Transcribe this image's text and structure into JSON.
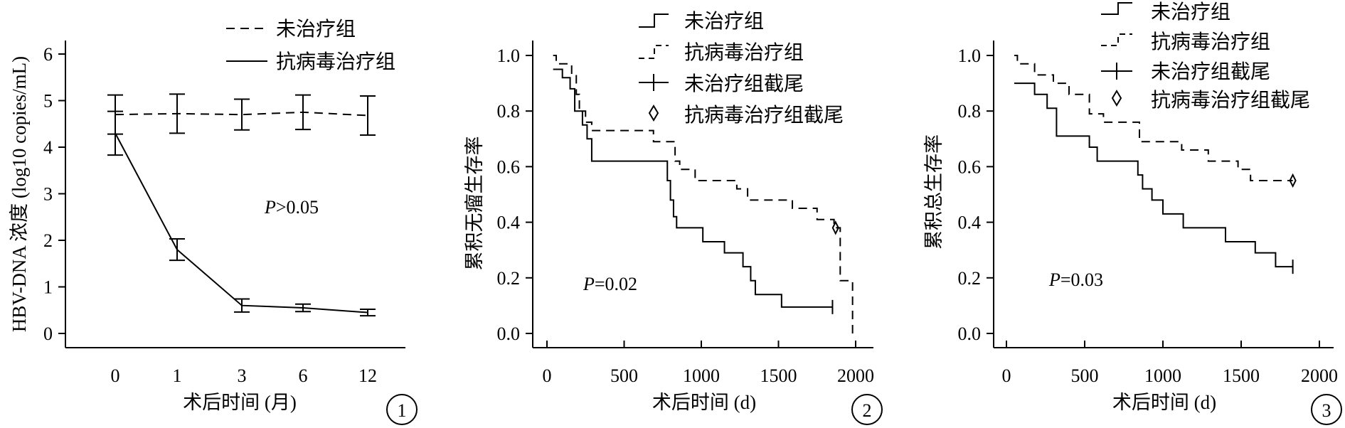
{
  "chart_data": [
    {
      "type": "line",
      "panel_number": "1",
      "xlabel": "术后时间 (月)",
      "ylabel": "HBV-DNA 浓度 (log10 copies/mL)",
      "categories": [
        "0",
        "1",
        "3",
        "6",
        "12"
      ],
      "ylim": [
        0,
        6
      ],
      "yticks": [
        "0",
        "1",
        "2",
        "3",
        "4",
        "5",
        "6"
      ],
      "annotation": {
        "italic": "P",
        "rest": ">0.05"
      },
      "legend_position": "top-right",
      "series": [
        {
          "name": "未治疗组",
          "style": "dashed",
          "values": [
            4.7,
            4.72,
            4.7,
            4.75,
            4.68
          ],
          "errors": [
            0.42,
            0.42,
            0.33,
            0.37,
            0.42
          ]
        },
        {
          "name": "抗病毒治疗组",
          "style": "solid",
          "values": [
            4.3,
            1.8,
            0.6,
            0.55,
            0.45
          ],
          "errors": [
            0.47,
            0.23,
            0.14,
            0.08,
            0.07
          ]
        }
      ]
    },
    {
      "type": "line",
      "panel_number": "2",
      "xlabel": "术后时间 (d)",
      "ylabel": "累积无瘤生存率",
      "xlim": [
        0,
        2000
      ],
      "xticks": [
        "0",
        "500",
        "1000",
        "1500",
        "2000"
      ],
      "ylim": [
        0,
        1
      ],
      "yticks": [
        "0.0",
        "0.2",
        "0.4",
        "0.6",
        "0.8",
        "1.0"
      ],
      "annotation": {
        "italic": "P",
        "rest": "=0.02"
      },
      "legend_position": "top-right",
      "legend": [
        "未治疗组",
        "抗病毒治疗组",
        "未治疗组截尾",
        "抗病毒治疗组截尾"
      ],
      "series": [
        {
          "name": "未治疗组",
          "style": "solid",
          "points": [
            [
              40,
              0.95
            ],
            [
              100,
              0.95
            ],
            [
              100,
              0.92
            ],
            [
              150,
              0.92
            ],
            [
              150,
              0.88
            ],
            [
              180,
              0.88
            ],
            [
              180,
              0.8
            ],
            [
              230,
              0.8
            ],
            [
              230,
              0.75
            ],
            [
              260,
              0.75
            ],
            [
              260,
              0.7
            ],
            [
              290,
              0.7
            ],
            [
              290,
              0.62
            ],
            [
              780,
              0.62
            ],
            [
              780,
              0.55
            ],
            [
              800,
              0.55
            ],
            [
              800,
              0.48
            ],
            [
              820,
              0.48
            ],
            [
              820,
              0.42
            ],
            [
              840,
              0.42
            ],
            [
              840,
              0.38
            ],
            [
              1010,
              0.38
            ],
            [
              1010,
              0.33
            ],
            [
              1150,
              0.33
            ],
            [
              1150,
              0.29
            ],
            [
              1270,
              0.29
            ],
            [
              1270,
              0.24
            ],
            [
              1320,
              0.24
            ],
            [
              1320,
              0.19
            ],
            [
              1350,
              0.19
            ],
            [
              1350,
              0.14
            ],
            [
              1520,
              0.14
            ],
            [
              1520,
              0.095
            ],
            [
              1850,
              0.095
            ]
          ],
          "censor": [
            [
              1850,
              0.095
            ]
          ]
        },
        {
          "name": "抗病毒治疗组",
          "style": "dashed",
          "points": [
            [
              40,
              1.0
            ],
            [
              60,
              1.0
            ],
            [
              60,
              0.97
            ],
            [
              160,
              0.97
            ],
            [
              160,
              0.93
            ],
            [
              190,
              0.93
            ],
            [
              190,
              0.86
            ],
            [
              210,
              0.86
            ],
            [
              210,
              0.8
            ],
            [
              250,
              0.8
            ],
            [
              250,
              0.76
            ],
            [
              290,
              0.76
            ],
            [
              290,
              0.73
            ],
            [
              690,
              0.73
            ],
            [
              690,
              0.69
            ],
            [
              830,
              0.69
            ],
            [
              830,
              0.62
            ],
            [
              860,
              0.62
            ],
            [
              860,
              0.59
            ],
            [
              960,
              0.59
            ],
            [
              960,
              0.55
            ],
            [
              1230,
              0.55
            ],
            [
              1230,
              0.52
            ],
            [
              1300,
              0.52
            ],
            [
              1300,
              0.48
            ],
            [
              1590,
              0.48
            ],
            [
              1590,
              0.45
            ],
            [
              1750,
              0.45
            ],
            [
              1750,
              0.41
            ],
            [
              1860,
              0.41
            ],
            [
              1860,
              0.38
            ],
            [
              1900,
              0.38
            ],
            [
              1900,
              0.19
            ],
            [
              1980,
              0.19
            ],
            [
              1980,
              0.0
            ]
          ],
          "censor": [
            [
              1870,
              0.38
            ]
          ]
        }
      ]
    },
    {
      "type": "line",
      "panel_number": "3",
      "xlabel": "术后时间 (d)",
      "ylabel": "累积总生存率",
      "xlim": [
        0,
        2000
      ],
      "xticks": [
        "0",
        "500",
        "1000",
        "1500",
        "2000"
      ],
      "ylim": [
        0,
        1
      ],
      "yticks": [
        "0.0",
        "0.2",
        "0.4",
        "0.6",
        "0.8",
        "1.0"
      ],
      "annotation": {
        "italic": "P",
        "rest": "=0.03"
      },
      "legend_position": "top-right",
      "legend": [
        "未治疗组",
        "抗病毒治疗组",
        "未治疗组截尾",
        "抗病毒治疗组截尾"
      ],
      "series": [
        {
          "name": "未治疗组",
          "style": "solid",
          "points": [
            [
              50,
              0.9
            ],
            [
              180,
              0.9
            ],
            [
              180,
              0.86
            ],
            [
              260,
              0.86
            ],
            [
              260,
              0.81
            ],
            [
              320,
              0.81
            ],
            [
              320,
              0.71
            ],
            [
              530,
              0.71
            ],
            [
              530,
              0.67
            ],
            [
              580,
              0.67
            ],
            [
              580,
              0.62
            ],
            [
              840,
              0.62
            ],
            [
              840,
              0.57
            ],
            [
              870,
              0.57
            ],
            [
              870,
              0.52
            ],
            [
              930,
              0.52
            ],
            [
              930,
              0.48
            ],
            [
              1000,
              0.48
            ],
            [
              1000,
              0.43
            ],
            [
              1130,
              0.43
            ],
            [
              1130,
              0.38
            ],
            [
              1400,
              0.38
            ],
            [
              1400,
              0.33
            ],
            [
              1590,
              0.33
            ],
            [
              1590,
              0.29
            ],
            [
              1720,
              0.29
            ],
            [
              1720,
              0.24
            ],
            [
              1830,
              0.24
            ]
          ],
          "censor": [
            [
              1830,
              0.24
            ]
          ]
        },
        {
          "name": "抗病毒治疗组",
          "style": "dashed",
          "points": [
            [
              50,
              1.0
            ],
            [
              70,
              1.0
            ],
            [
              70,
              0.97
            ],
            [
              180,
              0.97
            ],
            [
              180,
              0.93
            ],
            [
              300,
              0.93
            ],
            [
              300,
              0.9
            ],
            [
              400,
              0.9
            ],
            [
              400,
              0.86
            ],
            [
              530,
              0.86
            ],
            [
              530,
              0.79
            ],
            [
              620,
              0.79
            ],
            [
              620,
              0.76
            ],
            [
              850,
              0.76
            ],
            [
              850,
              0.69
            ],
            [
              1120,
              0.69
            ],
            [
              1120,
              0.66
            ],
            [
              1290,
              0.66
            ],
            [
              1290,
              0.62
            ],
            [
              1480,
              0.62
            ],
            [
              1480,
              0.59
            ],
            [
              1560,
              0.59
            ],
            [
              1560,
              0.55
            ],
            [
              1830,
              0.55
            ]
          ],
          "censor": [
            [
              1830,
              0.55
            ]
          ]
        }
      ]
    }
  ]
}
